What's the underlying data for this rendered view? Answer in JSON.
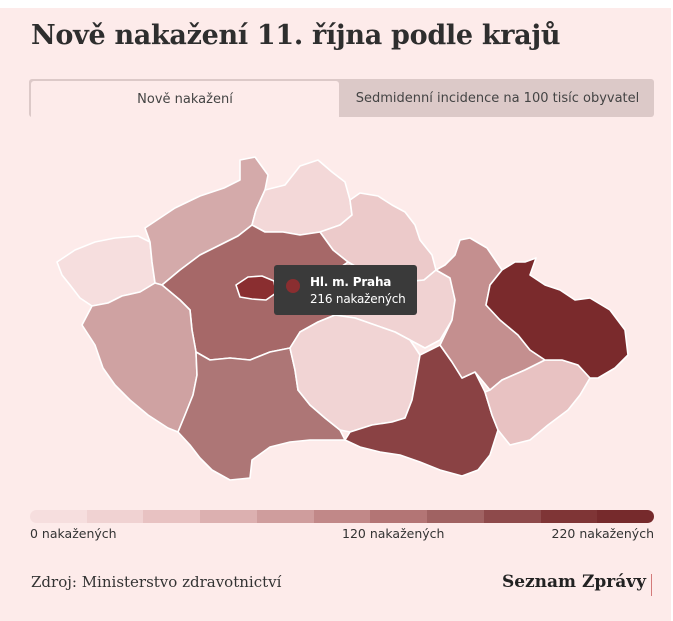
{
  "title": "Nově nakažení 11. října podle krajů",
  "tabs": [
    {
      "label": "Nově nakažení",
      "active": true
    },
    {
      "label": "Sedmidenní incidence na 100 tisíc obyvatel",
      "active": false
    }
  ],
  "colors": {
    "background": "#fdebea",
    "tooltip_bg": "#3a3a3a",
    "scale": [
      "#f6dede",
      "#f0d2d2",
      "#e8c2c2",
      "#dcb0b0",
      "#cf9d9d",
      "#c18888",
      "#b37575",
      "#a06262",
      "#8e4a4b",
      "#7f3536",
      "#762a2c"
    ]
  },
  "regions": [
    {
      "name": "Karlovarský kraj",
      "color": "#f6dede"
    },
    {
      "name": "Ústecký kraj",
      "color": "#d4aaaa"
    },
    {
      "name": "Liberecký kraj",
      "color": "#f3d8d8"
    },
    {
      "name": "Královéhradecký kraj",
      "color": "#eccaca"
    },
    {
      "name": "Pardubický kraj",
      "color": "#f0d2d2"
    },
    {
      "name": "Středočeský kraj",
      "color": "#a66868"
    },
    {
      "name": "Hl. m. Praha",
      "color": "#8a2e30"
    },
    {
      "name": "Plzeňský kraj",
      "color": "#cfa2a2"
    },
    {
      "name": "Jihočeský kraj",
      "color": "#ad7676"
    },
    {
      "name": "Kraj Vysočina",
      "color": "#f1d4d4"
    },
    {
      "name": "Jihomoravský kraj",
      "color": "#8a4244"
    },
    {
      "name": "Olomoucký kraj",
      "color": "#c48f8f"
    },
    {
      "name": "Zlínský kraj",
      "color": "#e8c2c2"
    },
    {
      "name": "Moravskoslezský kraj",
      "color": "#7a2a2c"
    }
  ],
  "tooltip": {
    "name": "Hl. m. Praha",
    "value": "216 nakažených"
  },
  "legend": {
    "min_label": "0 nakažených",
    "mid_label": "120 nakažených",
    "max_label": "220 nakažených"
  },
  "source": "Zdroj: Ministerstvo zdravotnictví",
  "brand": "Seznam Zprávy"
}
